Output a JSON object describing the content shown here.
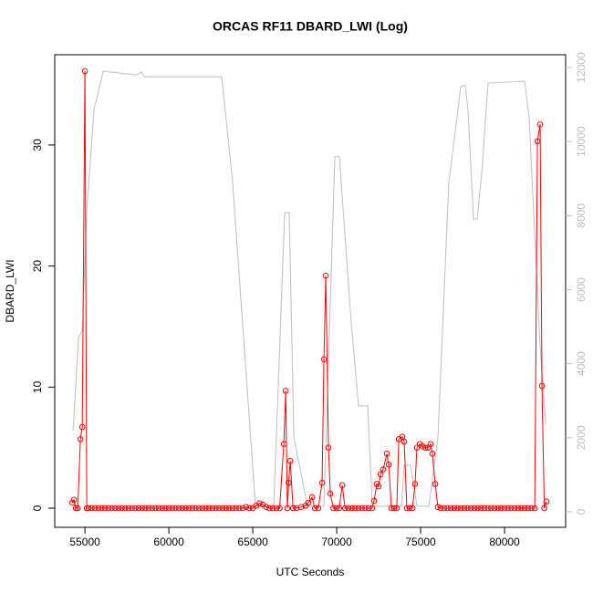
{
  "chart_data": {
    "type": "line",
    "title": "ORCAS RF11 DBARD_LWI (Log)",
    "x_label": "UTC Seconds",
    "y_label": "DBARD_LWI",
    "xlim": [
      53200,
      83640
    ],
    "ylim": [
      -1.58,
      37.45
    ],
    "y2lim": [
      -419,
      12345
    ],
    "xticks": [
      55000,
      60000,
      65000,
      70000,
      75000,
      80000
    ],
    "yticks": [
      0,
      10,
      20,
      30
    ],
    "y2ticks": [
      0,
      2000,
      4000,
      6000,
      8000,
      10000,
      12000
    ],
    "series": [
      {
        "color": "#ff0000",
        "markers": true,
        "x": [
          54240,
          54350,
          54460,
          54570,
          54730,
          54840,
          55000,
          55110,
          55220,
          55400,
          55600,
          55800,
          56000,
          56200,
          56400,
          56600,
          56800,
          57000,
          57200,
          57400,
          57600,
          57800,
          58000,
          58200,
          58400,
          58600,
          58800,
          59000,
          59200,
          59400,
          59600,
          59800,
          60000,
          60200,
          60400,
          60600,
          60800,
          61000,
          61200,
          61400,
          61600,
          61800,
          62000,
          62200,
          62400,
          62600,
          62800,
          63000,
          63200,
          63400,
          63600,
          63800,
          64000,
          64200,
          64400,
          64600,
          64800,
          65000,
          65200,
          65400,
          65600,
          65800,
          66000,
          66200,
          66400,
          66600,
          66850,
          66960,
          67060,
          67140,
          67230,
          67400,
          67600,
          67880,
          68150,
          68310,
          68530,
          68700,
          68900,
          69130,
          69240,
          69350,
          69510,
          69620,
          69800,
          70000,
          70150,
          70330,
          70500,
          70700,
          70900,
          71100,
          71300,
          71500,
          71700,
          71900,
          72100,
          72230,
          72390,
          72500,
          72610,
          72770,
          72990,
          73100,
          73260,
          73420,
          73580,
          73700,
          73910,
          74020,
          74180,
          74350,
          74510,
          74670,
          74780,
          74950,
          75110,
          75280,
          75440,
          75600,
          75700,
          75870,
          76030,
          76200,
          76400,
          76600,
          76800,
          77000,
          77200,
          77400,
          77600,
          77800,
          78000,
          78200,
          78400,
          78600,
          78800,
          79000,
          79200,
          79400,
          79600,
          79800,
          80000,
          80200,
          80400,
          80600,
          80800,
          81000,
          81200,
          81400,
          81600,
          81800,
          81960,
          82120,
          82230,
          82370,
          82500
        ],
        "values": [
          0.45,
          0.7,
          0,
          0,
          5.7,
          6.7,
          36.1,
          0,
          0,
          0,
          0,
          0,
          0,
          0,
          0,
          0,
          0,
          0,
          0,
          0,
          0,
          0,
          0,
          0,
          0,
          0,
          0,
          0,
          0,
          0,
          0,
          0,
          0,
          0,
          0,
          0,
          0,
          0,
          0,
          0,
          0,
          0,
          0,
          0,
          0,
          0,
          0,
          0,
          0,
          0,
          0,
          0,
          0,
          0,
          0,
          0.1,
          0,
          0,
          0.2,
          0.4,
          0.3,
          0.1,
          0,
          0,
          0,
          0,
          5.3,
          9.7,
          0,
          2.1,
          3.9,
          0,
          0,
          0.1,
          0.2,
          0.45,
          0.9,
          0,
          0,
          2.1,
          12.3,
          19.2,
          5,
          1.2,
          0,
          0,
          0,
          1.9,
          0,
          0,
          0,
          0,
          0,
          0,
          0,
          0,
          0,
          0.6,
          2,
          1.8,
          2.8,
          3.2,
          4.5,
          3.6,
          0,
          0,
          0,
          5.7,
          5.9,
          5.5,
          0,
          0,
          0,
          2,
          5,
          5.3,
          5.1,
          5,
          5,
          5.3,
          4.5,
          2,
          0.1,
          0,
          0,
          0,
          0,
          0,
          0,
          0,
          0,
          0,
          0,
          0,
          0,
          0,
          0,
          0,
          0,
          0,
          0,
          0,
          0,
          0,
          0,
          0,
          0,
          0,
          0,
          0,
          0,
          0,
          30.3,
          31.7,
          10.1,
          0,
          0.55
        ]
      },
      {
        "color": "#bebebe",
        "axis": "y2",
        "markers": false,
        "x": [
          54290,
          54620,
          54840,
          55110,
          55540,
          56090,
          58100,
          58370,
          58530,
          63150,
          63800,
          65160,
          66250,
          66900,
          67170,
          67450,
          68260,
          69240,
          69890,
          70160,
          70870,
          71300,
          71850,
          72120,
          73860,
          74020,
          74400,
          74780,
          75490,
          76030,
          76680,
          77390,
          77660,
          77820,
          78150,
          78370,
          78640,
          79020,
          81200,
          81470,
          82120,
          82450
        ],
        "values": [
          2190,
          4700,
          4900,
          8150,
          10870,
          11900,
          11800,
          11880,
          11750,
          11750,
          8900,
          150,
          150,
          8080,
          8080,
          2000,
          150,
          150,
          9590,
          9590,
          5080,
          2860,
          2860,
          150,
          150,
          1260,
          1260,
          150,
          150,
          2000,
          8900,
          11480,
          11530,
          10870,
          7910,
          7910,
          9140,
          11580,
          11630,
          10620,
          4460,
          2370
        ]
      }
    ]
  }
}
